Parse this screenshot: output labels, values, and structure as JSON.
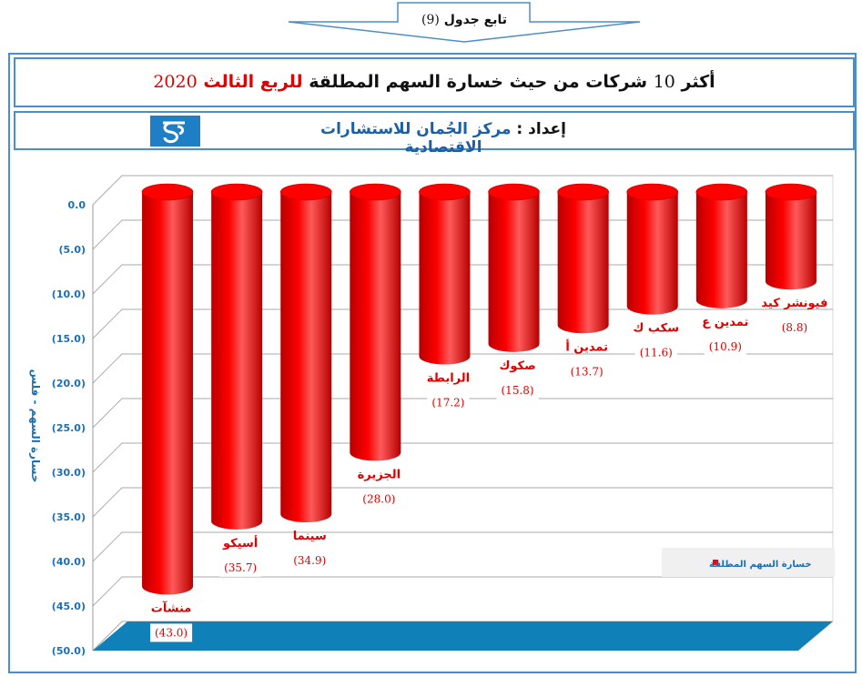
{
  "header": {
    "banner_label": "تابع جدول",
    "banner_number": "(9)"
  },
  "title": {
    "part1": "أكثر",
    "count": "10",
    "part2": "شركات من حيث خسارة السهم المطلقة",
    "part_red": "للربع الثالث",
    "year": "2020"
  },
  "source": {
    "label": "إعداد",
    "separator": ":",
    "name": "مركز الجُمان للاستشارات الاقتصادية"
  },
  "colors": {
    "bar": "#ff0000",
    "bar_dark": "#b80000",
    "bar_light": "#ff5a5a",
    "floor": "#1080b8",
    "frame": "#4a8fc7",
    "axis_text": "#1a6fb5",
    "label_text": "#e00000"
  },
  "chart_data": {
    "type": "bar",
    "categories": [
      "منشآت",
      "أسيكو",
      "سينما",
      "الجزيرة",
      "الرابطة",
      "صكوك",
      "تمدين أ",
      "سكب ك",
      "تمدين ع",
      "فيونشر كيد"
    ],
    "value_labels": [
      "(43.0)",
      "(35.7)",
      "(34.9)",
      "(28.0)",
      "(17.2)",
      "(15.8)",
      "(13.7)",
      "(11.6)",
      "(10.9)",
      "(8.8)"
    ],
    "values": [
      -43.0,
      -35.7,
      -34.9,
      -28.0,
      -17.2,
      -15.8,
      -13.7,
      -11.6,
      -10.9,
      -8.8
    ],
    "ylabel": "خسارة السهم - فلس",
    "ylim": [
      -50,
      0
    ],
    "yticks": [
      "0.0",
      "(5.0)",
      "(10.0)",
      "(15.0)",
      "(20.0)",
      "(25.0)",
      "(30.0)",
      "(35.0)",
      "(40.0)",
      "(45.0)",
      "(50.0)"
    ],
    "legend": {
      "label": "خسارة السهم المطلقة",
      "position": "bottom-right"
    },
    "grid": true
  }
}
